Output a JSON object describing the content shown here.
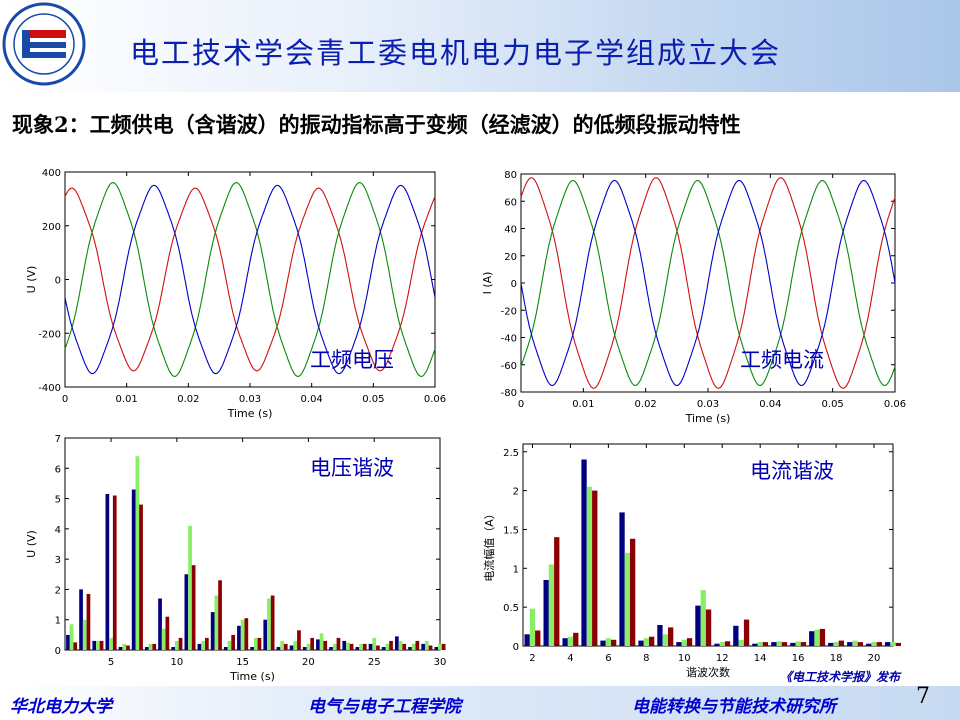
{
  "header": {
    "title": "电工技术学会青工委电机电力电子学组成立大会"
  },
  "subtitle": "现象2：工频供电（含谐波）的振动指标高于变频（经滤波）的低频段振动特性",
  "colors": {
    "red": "#d01010",
    "green": "#0a8a0a",
    "blue": "#0000c8",
    "navy": "#000080",
    "lightgreen": "#88ee66",
    "darkred": "#8b0000"
  },
  "footer": {
    "left": "华北电力大学",
    "center": "电气与电子工程学院",
    "right": "电能转换与节能技术研究所",
    "publisher": "《电工技术学报》发布",
    "page": "7"
  },
  "chart_data": [
    {
      "type": "line",
      "annotation": "工频电压",
      "xlabel": "Time (s)",
      "ylabel": "U (V)",
      "xlim": [
        0,
        0.06
      ],
      "ylim": [
        -400,
        400
      ],
      "xticks": [
        "0",
        "0.01",
        "0.02",
        "0.03",
        "0.04",
        "0.05",
        "0.06"
      ],
      "yticks": [
        "-400",
        "-200",
        "0",
        "200",
        "400"
      ],
      "series": [
        {
          "color": "red",
          "amplitude": 330,
          "phase_deg": 70
        },
        {
          "color": "green",
          "amplitude": 350,
          "phase_deg": -50
        },
        {
          "color": "blue",
          "amplitude": 340,
          "phase_deg": 190
        }
      ]
    },
    {
      "type": "line",
      "annotation": "工频电流",
      "xlabel": "Time (s)",
      "ylabel": "I (A)",
      "xlim": [
        0,
        0.06
      ],
      "ylim": [
        -80,
        80
      ],
      "xticks": [
        "0",
        "0.01",
        "0.02",
        "0.03",
        "0.04",
        "0.05",
        "0.06"
      ],
      "yticks": [
        "-80",
        "-60",
        "-40",
        "-20",
        "0",
        "20",
        "40",
        "60",
        "80"
      ],
      "series": [
        {
          "color": "red",
          "amplitude": 75,
          "phase_deg": 60
        },
        {
          "color": "green",
          "amplitude": 73,
          "phase_deg": -60
        },
        {
          "color": "blue",
          "amplitude": 73,
          "phase_deg": 180
        }
      ]
    },
    {
      "type": "bar",
      "annotation": "电压谐波",
      "xlabel": "Time (s)",
      "ylabel": "U (V)",
      "xlim": [
        1.5,
        30
      ],
      "ylim": [
        0,
        7
      ],
      "xticks": [
        "5",
        "10",
        "15",
        "20",
        "25",
        "30"
      ],
      "yticks": [
        "0",
        "1",
        "2",
        "3",
        "4",
        "5",
        "6",
        "7"
      ],
      "x": [
        2,
        3,
        4,
        5,
        6,
        7,
        8,
        9,
        10,
        11,
        12,
        13,
        14,
        15,
        16,
        17,
        18,
        19,
        20,
        21,
        22,
        23,
        24,
        25,
        26,
        27,
        28,
        29,
        30
      ],
      "series": [
        {
          "color": "navy",
          "values": [
            0.5,
            2.0,
            0.3,
            5.15,
            0.1,
            5.3,
            0.1,
            1.7,
            0.1,
            2.5,
            0.2,
            1.25,
            0.1,
            0.8,
            0.1,
            1.0,
            0.1,
            0.15,
            0.1,
            0.35,
            0.1,
            0.3,
            0.1,
            0.2,
            0.1,
            0.45,
            0.1,
            0.2,
            0.1
          ]
        },
        {
          "color": "lightgreen",
          "values": [
            0.85,
            1.0,
            0.3,
            0.4,
            0.2,
            6.4,
            0.2,
            0.7,
            0.3,
            4.1,
            0.3,
            1.8,
            0.3,
            1.0,
            0.4,
            1.7,
            0.3,
            0.3,
            0.2,
            0.55,
            0.2,
            0.25,
            0.2,
            0.4,
            0.2,
            0.3,
            0.2,
            0.3,
            0.2
          ]
        },
        {
          "color": "darkred",
          "values": [
            0.25,
            1.85,
            0.3,
            5.1,
            0.15,
            4.8,
            0.2,
            1.1,
            0.4,
            2.8,
            0.4,
            2.3,
            0.5,
            1.05,
            0.4,
            1.8,
            0.2,
            0.65,
            0.4,
            0.3,
            0.4,
            0.2,
            0.2,
            0.15,
            0.3,
            0.2,
            0.3,
            0.15,
            0.2
          ]
        }
      ]
    },
    {
      "type": "bar",
      "annotation": "电流谐波",
      "xlabel": "谐波次数",
      "ylabel": "电流幅值（A）",
      "xlim": [
        1.5,
        21
      ],
      "ylim": [
        0,
        2.6
      ],
      "xticks": [
        "2",
        "4",
        "6",
        "8",
        "10",
        "12",
        "14",
        "16",
        "18",
        "20"
      ],
      "yticks": [
        "0",
        "0.5",
        "1",
        "1.5",
        "2",
        "2.5"
      ],
      "x": [
        2,
        3,
        4,
        5,
        6,
        7,
        8,
        9,
        10,
        11,
        12,
        13,
        14,
        15,
        16,
        17,
        18,
        19,
        20,
        21
      ],
      "series": [
        {
          "color": "navy",
          "values": [
            0.15,
            0.85,
            0.1,
            2.4,
            0.07,
            1.72,
            0.07,
            0.27,
            0.05,
            0.52,
            0.03,
            0.26,
            0.03,
            0.05,
            0.04,
            0.19,
            0.04,
            0.05,
            0.03,
            0.05
          ]
        },
        {
          "color": "lightgreen",
          "values": [
            0.48,
            1.05,
            0.12,
            2.05,
            0.1,
            1.2,
            0.1,
            0.15,
            0.08,
            0.72,
            0.05,
            0.08,
            0.05,
            0.06,
            0.06,
            0.21,
            0.05,
            0.07,
            0.05,
            0.05
          ]
        },
        {
          "color": "darkred",
          "values": [
            0.2,
            1.4,
            0.17,
            2.0,
            0.08,
            1.38,
            0.12,
            0.24,
            0.1,
            0.47,
            0.06,
            0.34,
            0.05,
            0.05,
            0.05,
            0.22,
            0.07,
            0.05,
            0.05,
            0.04
          ]
        }
      ]
    }
  ]
}
